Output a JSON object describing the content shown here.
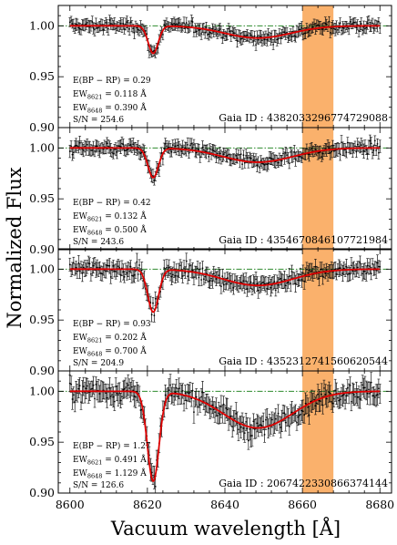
{
  "chart_data": {
    "type": "line",
    "xlabel": "Vacuum wavelength [Å]",
    "ylabel": "Normalized Flux",
    "xlim": [
      8597,
      8683
    ],
    "ylim": [
      0.9,
      1.02
    ],
    "x_ticks": [
      "8600",
      "8620",
      "8640",
      "8660",
      "8680"
    ],
    "y_ticks": [
      "0.90",
      "0.95",
      "1.00"
    ],
    "highlight_band": {
      "x_start": 8660,
      "x_end": 8668,
      "color": "#f9a95c"
    },
    "reference_line": {
      "y": 1.0,
      "color": "#2e8b2e",
      "style": "dash-dot"
    },
    "colors": {
      "model": "#e00000",
      "data": "#000000"
    },
    "panels": [
      {
        "ebv_label": "E(BP − RP) = 0.29",
        "ew8621_label": "EW",
        "ew8621_sub": "8621",
        "ew8621_value": " = 0.118 Å",
        "ew8648_label": "EW",
        "ew8648_sub": "8648",
        "ew8648_value": " = 0.390 Å",
        "sn_label": "S/N = 254.6",
        "gaia_label": "Gaia ID : 4382033296774729088",
        "noise": 0.0045,
        "model": {
          "d8621_depth": 0.027,
          "d8621_sigma": 1.3,
          "d8648_depth": 0.012,
          "d8648_sigma": 8.5
        }
      },
      {
        "ebv_label": "E(BP − RP) = 0.42",
        "ew8621_label": "EW",
        "ew8621_sub": "8621",
        "ew8621_value": " = 0.132 Å",
        "ew8648_label": "EW",
        "ew8648_sub": "8648",
        "ew8648_value": " = 0.500 Å",
        "sn_label": "S/N = 243.6",
        "gaia_label": "Gaia ID : 4354670846107721984",
        "noise": 0.005,
        "model": {
          "d8621_depth": 0.029,
          "d8621_sigma": 1.35,
          "d8648_depth": 0.014,
          "d8648_sigma": 9.0
        }
      },
      {
        "ebv_label": "E(BP − RP) = 0.93",
        "ew8621_label": "EW",
        "ew8621_sub": "8621",
        "ew8621_value": " = 0.202 Å",
        "ew8648_label": "EW",
        "ew8648_sub": "8648",
        "ew8648_value": " = 0.700 Å",
        "sn_label": "S/N = 204.9",
        "gaia_label": "Gaia ID : 4352312741560620544",
        "noise": 0.006,
        "model": {
          "d8621_depth": 0.042,
          "d8621_sigma": 1.4,
          "d8648_depth": 0.016,
          "d8648_sigma": 9.0
        }
      },
      {
        "ebv_label": "E(BP − RP) = 1.27",
        "ew8621_label": "EW",
        "ew8621_sub": "8621",
        "ew8621_value": " = 0.491 Å",
        "ew8648_label": "EW",
        "ew8648_sub": "8648",
        "ew8648_value": " = 1.129 Å",
        "sn_label": "S/N = 126.6",
        "gaia_label": "Gaia ID : 2067422330866374144",
        "noise": 0.008,
        "model": {
          "d8621_depth": 0.088,
          "d8621_sigma": 1.5,
          "d8648_depth": 0.036,
          "d8648_sigma": 9.0
        }
      }
    ]
  }
}
